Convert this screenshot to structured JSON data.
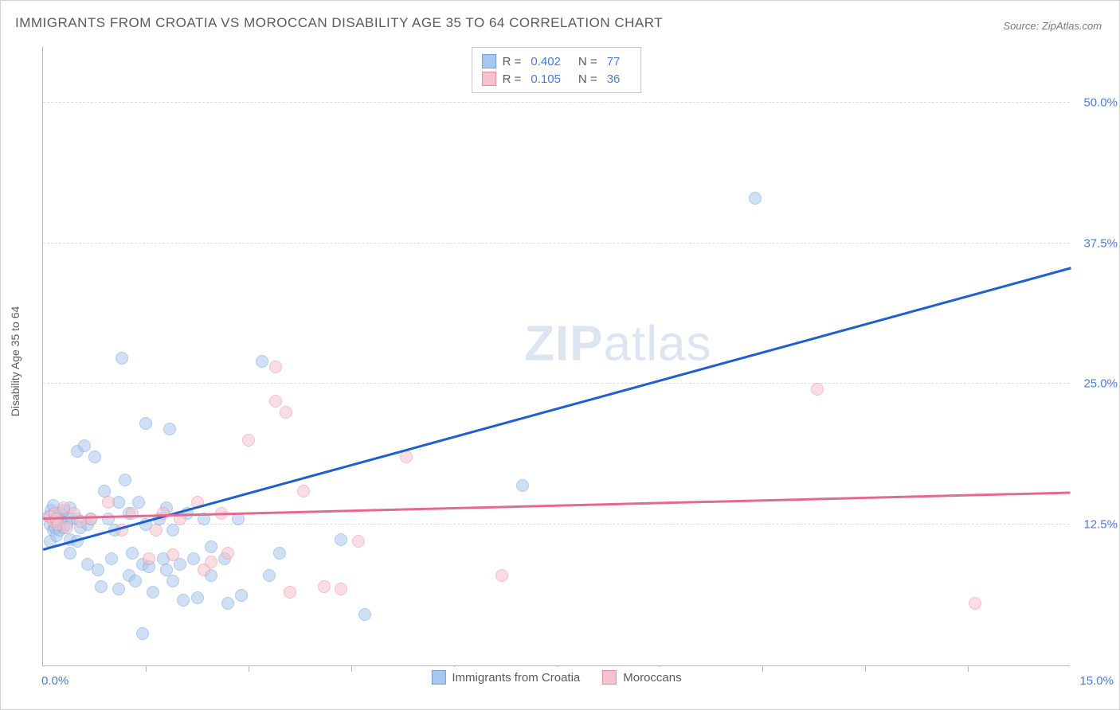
{
  "title": "IMMIGRANTS FROM CROATIA VS MOROCCAN DISABILITY AGE 35 TO 64 CORRELATION CHART",
  "source_label": "Source: ZipAtlas.com",
  "watermark": {
    "part1": "ZIP",
    "part2": "atlas"
  },
  "chart": {
    "type": "scatter",
    "ylabel": "Disability Age 35 to 64",
    "xlim": [
      0,
      15
    ],
    "ylim": [
      0,
      55
    ],
    "x_unit": "%",
    "y_unit": "%",
    "y_gridlines": [
      12.5,
      25.0,
      37.5,
      50.0
    ],
    "x_tick_step": 1.5,
    "x_axis_labels": [
      {
        "value": 0.0,
        "text": "0.0%"
      },
      {
        "value": 15.0,
        "text": "15.0%"
      }
    ],
    "background_color": "#ffffff",
    "grid_color": "#dcdcdc",
    "axis_color": "#b8b8b8",
    "tick_label_color": "#4a7dd4",
    "title_color": "#5a5a5a",
    "marker_radius": 8,
    "marker_opacity": 0.55,
    "series": [
      {
        "name": "Immigrants from Croatia",
        "color_fill": "#a9c7ee",
        "color_stroke": "#6fa0dd",
        "trend_color": "#1f5fd0",
        "R": 0.402,
        "N": 77,
        "trend": {
          "x1": 0,
          "y1": 10.2,
          "x2": 15,
          "y2": 35.2
        },
        "points": [
          [
            0.08,
            13.2
          ],
          [
            0.1,
            12.5
          ],
          [
            0.1,
            11.0
          ],
          [
            0.12,
            13.8
          ],
          [
            0.15,
            12.0
          ],
          [
            0.15,
            14.2
          ],
          [
            0.18,
            12.2
          ],
          [
            0.18,
            13.0
          ],
          [
            0.2,
            11.5
          ],
          [
            0.2,
            12.8
          ],
          [
            0.22,
            13.3
          ],
          [
            0.24,
            12.0
          ],
          [
            0.25,
            13.5
          ],
          [
            0.28,
            12.8
          ],
          [
            0.3,
            12.2
          ],
          [
            0.3,
            13.8
          ],
          [
            0.35,
            12.5
          ],
          [
            0.4,
            14.0
          ],
          [
            0.4,
            11.2
          ],
          [
            0.42,
            13.0
          ],
          [
            0.5,
            19.0
          ],
          [
            0.5,
            13.0
          ],
          [
            0.55,
            12.2
          ],
          [
            0.6,
            19.5
          ],
          [
            0.65,
            12.5
          ],
          [
            0.65,
            9.0
          ],
          [
            0.7,
            13.0
          ],
          [
            0.75,
            18.5
          ],
          [
            0.8,
            8.5
          ],
          [
            0.85,
            7.0
          ],
          [
            0.9,
            15.5
          ],
          [
            0.95,
            13.0
          ],
          [
            1.0,
            9.5
          ],
          [
            1.05,
            12.0
          ],
          [
            1.1,
            6.8
          ],
          [
            1.1,
            14.5
          ],
          [
            1.15,
            27.3
          ],
          [
            1.2,
            16.5
          ],
          [
            1.25,
            8.0
          ],
          [
            1.25,
            13.5
          ],
          [
            1.3,
            10.0
          ],
          [
            1.35,
            7.5
          ],
          [
            1.4,
            14.5
          ],
          [
            1.45,
            9.0
          ],
          [
            1.5,
            21.5
          ],
          [
            1.5,
            12.5
          ],
          [
            1.55,
            8.8
          ],
          [
            1.6,
            6.5
          ],
          [
            1.7,
            13.0
          ],
          [
            1.75,
            9.5
          ],
          [
            1.8,
            8.5
          ],
          [
            1.8,
            14.0
          ],
          [
            1.85,
            21.0
          ],
          [
            1.9,
            12.0
          ],
          [
            1.9,
            7.5
          ],
          [
            2.0,
            9.0
          ],
          [
            2.05,
            5.8
          ],
          [
            2.1,
            13.5
          ],
          [
            2.2,
            9.5
          ],
          [
            2.25,
            6.0
          ],
          [
            2.35,
            13.0
          ],
          [
            2.45,
            10.5
          ],
          [
            2.45,
            8.0
          ],
          [
            2.65,
            9.5
          ],
          [
            2.7,
            5.5
          ],
          [
            2.85,
            13.0
          ],
          [
            2.9,
            6.2
          ],
          [
            3.2,
            27.0
          ],
          [
            3.3,
            8.0
          ],
          [
            3.45,
            10.0
          ],
          [
            4.35,
            11.2
          ],
          [
            4.7,
            4.5
          ],
          [
            1.45,
            2.8
          ],
          [
            7.0,
            16.0
          ],
          [
            10.4,
            41.5
          ],
          [
            0.4,
            10.0
          ],
          [
            0.5,
            11.0
          ]
        ]
      },
      {
        "name": "Moroccans",
        "color_fill": "#f5c2cd",
        "color_stroke": "#e88ba2",
        "trend_color": "#e46a8d",
        "R": 0.105,
        "N": 36,
        "trend": {
          "x1": 0,
          "y1": 13.0,
          "x2": 15,
          "y2": 15.3
        },
        "points": [
          [
            0.1,
            13.2
          ],
          [
            0.15,
            12.8
          ],
          [
            0.18,
            13.5
          ],
          [
            0.2,
            13.0
          ],
          [
            0.22,
            12.5
          ],
          [
            0.3,
            14.0
          ],
          [
            0.35,
            12.2
          ],
          [
            0.45,
            13.5
          ],
          [
            0.55,
            12.8
          ],
          [
            0.7,
            13.0
          ],
          [
            0.95,
            14.5
          ],
          [
            1.15,
            12.0
          ],
          [
            1.3,
            13.5
          ],
          [
            1.55,
            9.5
          ],
          [
            1.65,
            12.0
          ],
          [
            1.75,
            13.5
          ],
          [
            1.9,
            9.8
          ],
          [
            2.0,
            13.0
          ],
          [
            2.25,
            14.5
          ],
          [
            2.35,
            8.5
          ],
          [
            2.45,
            9.2
          ],
          [
            2.6,
            13.5
          ],
          [
            2.7,
            10.0
          ],
          [
            3.0,
            20.0
          ],
          [
            3.4,
            23.5
          ],
          [
            3.4,
            26.5
          ],
          [
            3.55,
            22.5
          ],
          [
            3.6,
            6.5
          ],
          [
            4.1,
            7.0
          ],
          [
            4.35,
            6.8
          ],
          [
            4.6,
            11.0
          ],
          [
            5.3,
            18.5
          ],
          [
            3.8,
            15.5
          ],
          [
            6.7,
            8.0
          ],
          [
            11.3,
            24.5
          ],
          [
            13.6,
            5.5
          ]
        ]
      }
    ],
    "legend_top_labels": {
      "R": "R =",
      "N": "N ="
    }
  }
}
